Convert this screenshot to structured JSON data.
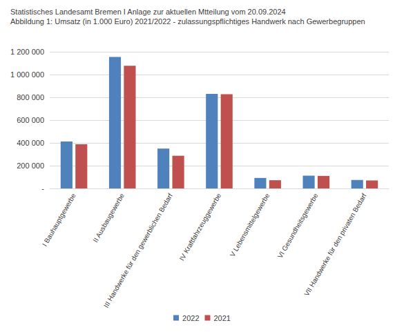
{
  "chart_data": {
    "type": "bar",
    "title": "Statistisches Landesamt Bremen I Anlage zur aktuellen Mtteilung vom 20.09.2024",
    "subtitle": "Abbildung 1: Umsatz (in 1.000 Euro) 2021/2022 - zulassungspflichtiges Handwerk nach Gewerbegruppen",
    "categories": [
      "I Bauhauptgewerbe",
      "II Ausbaugewerbe",
      "III Handwerke für den gewerblichen Bedarf",
      "IV Kraftfahrzeuggewerbe",
      "V Lebensmittelgewerbe",
      "VI Gesundheitsgewerbe",
      "VII Handwerke für den privaten Bedarf"
    ],
    "series": [
      {
        "name": "2022",
        "color": "#4f81bd",
        "values": [
          412000,
          1155000,
          350000,
          830000,
          92000,
          112000,
          75000
        ]
      },
      {
        "name": "2021",
        "color": "#c0504d",
        "values": [
          388000,
          1078000,
          287000,
          828000,
          72000,
          110000,
          70000
        ]
      }
    ],
    "ylim": [
      0,
      1200000
    ],
    "yticks": [
      {
        "value": 0,
        "label": "-"
      },
      {
        "value": 200000,
        "label": "200 000"
      },
      {
        "value": 400000,
        "label": "400 000"
      },
      {
        "value": 600000,
        "label": "600 000"
      },
      {
        "value": 800000,
        "label": "800 000"
      },
      {
        "value": 1000000,
        "label": "1 000 000"
      },
      {
        "value": 1200000,
        "label": "1 200 000"
      }
    ],
    "grid": true,
    "legend": "bottom"
  }
}
